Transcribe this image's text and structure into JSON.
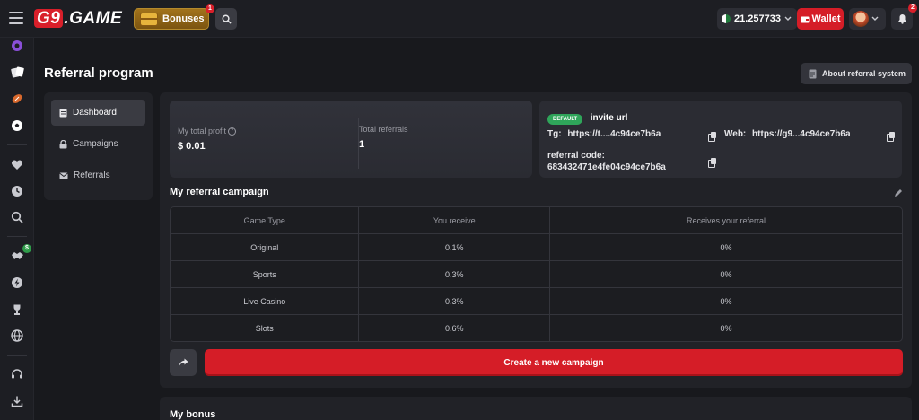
{
  "header": {
    "logo": "G9.GAME",
    "bonus_label": "Bonuses",
    "bonus_count": "1",
    "balance": "21.257733",
    "wallet_label": "Wallet",
    "notification_count": "2"
  },
  "page": {
    "title": "Referral program",
    "about_label": "About referral system"
  },
  "sidebar": {
    "items": [
      {
        "label": "Dashboard",
        "active": true
      },
      {
        "label": "Campaigns",
        "active": false
      },
      {
        "label": "Referrals",
        "active": false
      }
    ]
  },
  "stats": {
    "profit_label": "My total profit",
    "profit_value": "$ 0.01",
    "referrals_label": "Total referrals",
    "referrals_value": "1"
  },
  "invite": {
    "badge": "DEFAULT",
    "title": "invite url",
    "tg_label": "Tg:",
    "tg_value": "https://t....4c94ce7b6a",
    "web_label": "Web:",
    "web_value": "https://g9...4c94ce7b6a",
    "code_label": "referral code:",
    "code_value": "683432471e4fe04c94ce7b6a"
  },
  "campaign": {
    "title": "My referral campaign",
    "columns": [
      "Game Type",
      "You receive",
      "Receives your referral"
    ],
    "rows": [
      [
        "Original",
        "0.1%",
        "0%"
      ],
      [
        "Sports",
        "0.3%",
        "0%"
      ],
      [
        "Live Casino",
        "0.3%",
        "0%"
      ],
      [
        "Slots",
        "0.6%",
        "0%"
      ]
    ],
    "create_label": "Create a new campaign"
  },
  "bonus": {
    "title": "My bonus"
  },
  "rail": {
    "badge": "$"
  },
  "colors": {
    "accent": "#d51d27",
    "background": "#18191d",
    "panel": "#212227",
    "success": "#2fa55a",
    "gold": "#a2731b"
  }
}
